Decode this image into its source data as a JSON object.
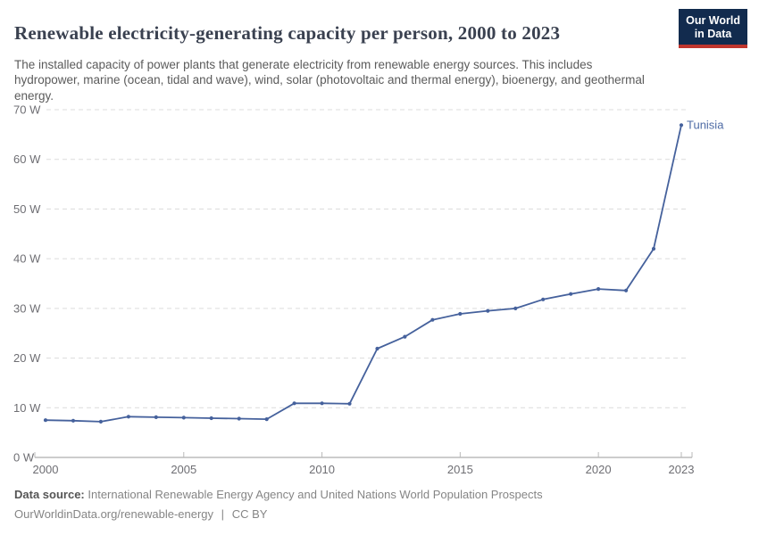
{
  "header": {
    "title": "Renewable electricity-generating capacity per person, 2000 to 2023",
    "subtitle": "The installed capacity of power plants that generate electricity from renewable energy sources. This includes hydropower, marine (ocean, tidal and wave), wind, solar (photovoltaic and thermal energy), bioenergy, and geothermal energy.",
    "logo": {
      "line1": "Our World",
      "line2": "in Data"
    }
  },
  "chart_data": {
    "type": "line",
    "title": "Renewable electricity-generating capacity per person, 2000 to 2023",
    "unit": "W",
    "xlabel": "",
    "ylabel": "",
    "xlim": [
      2000,
      2023
    ],
    "ylim": [
      0,
      70
    ],
    "grid": "horizontal-dashed",
    "legend_position": "end-of-line-label",
    "x": [
      2000,
      2001,
      2002,
      2003,
      2004,
      2005,
      2006,
      2007,
      2008,
      2009,
      2010,
      2011,
      2012,
      2013,
      2014,
      2015,
      2016,
      2017,
      2018,
      2019,
      2020,
      2021,
      2022,
      2023
    ],
    "series": [
      {
        "name": "Tunisia",
        "values": [
          7.5,
          7.4,
          7.2,
          8.2,
          8.1,
          8.0,
          7.9,
          7.8,
          7.7,
          10.9,
          10.9,
          10.8,
          21.9,
          24.3,
          27.7,
          28.9,
          29.5,
          30.0,
          31.8,
          32.9,
          33.9,
          33.6,
          42.0,
          66.9
        ]
      }
    ],
    "yticks": [
      {
        "value": 0,
        "label": "0 W"
      },
      {
        "value": 10,
        "label": "10 W"
      },
      {
        "value": 20,
        "label": "20 W"
      },
      {
        "value": 30,
        "label": "30 W"
      },
      {
        "value": 40,
        "label": "40 W"
      },
      {
        "value": 50,
        "label": "50 W"
      },
      {
        "value": 60,
        "label": "60 W"
      },
      {
        "value": 70,
        "label": "70 W"
      }
    ],
    "xticks": [
      {
        "value": 2000,
        "label": "2000"
      },
      {
        "value": 2005,
        "label": "2005"
      },
      {
        "value": 2010,
        "label": "2010"
      },
      {
        "value": 2015,
        "label": "2015"
      },
      {
        "value": 2020,
        "label": "2020"
      },
      {
        "value": 2023,
        "label": "2023"
      }
    ],
    "end_label": "Tunisia"
  },
  "footer": {
    "source_label": "Data source:",
    "source_text": "International Renewable Energy Agency and United Nations World Population Prospects",
    "link_text": "OurWorldinData.org/renewable-energy",
    "separator": "|",
    "license": "CC BY"
  },
  "colors": {
    "line": "#45619c",
    "end_label": "#4e6ba5",
    "grid": "#dcdcdc",
    "axis": "#9a9a9a",
    "tick": "#b9b9b9",
    "tick_text": "#6e6e73",
    "logo_bg": "#122b4e",
    "logo_red": "#c0352d",
    "title_text": "#3a4150"
  }
}
